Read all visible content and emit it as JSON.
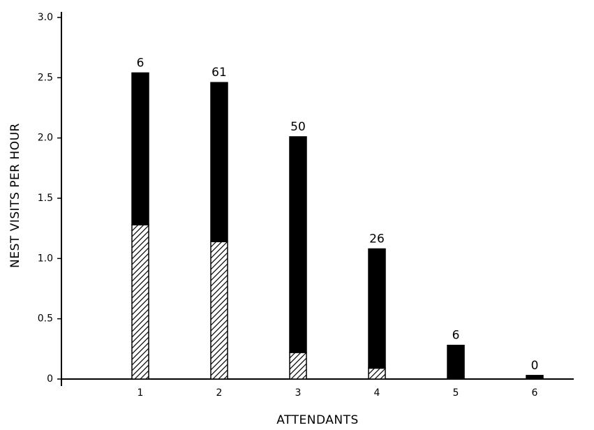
{
  "chart_data": {
    "type": "stacked_bar",
    "xlabel": "ATTENDANTS",
    "ylabel": "NEST VISITS PER HOUR",
    "categories": [
      "1",
      "2",
      "3",
      "4",
      "5",
      "6"
    ],
    "series": [
      {
        "fill": "hatch",
        "color": "#000000",
        "values": [
          1.28,
          1.14,
          0.22,
          0.09,
          0,
          0
        ]
      },
      {
        "fill": "solid",
        "color": "#000000",
        "values": [
          1.26,
          1.32,
          1.79,
          0.99,
          0.28,
          0.03
        ]
      }
    ],
    "annotations": [
      6,
      61,
      50,
      26,
      6,
      0
    ],
    "ylim": [
      0,
      3
    ],
    "yticks": [
      0,
      0.5,
      {
        "value": 1,
        "label": "1.0"
      },
      1.5,
      {
        "value": 2,
        "label": "2.0"
      },
      2.5,
      {
        "value": 3,
        "label": "3.0"
      }
    ],
    "grid": false
  }
}
